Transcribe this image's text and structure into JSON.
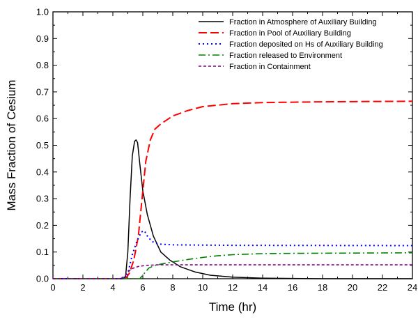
{
  "chart_data": {
    "type": "line",
    "title": "",
    "xlabel": "Time (hr)",
    "ylabel": "Mass Fraction of Cesium",
    "xlim": [
      0,
      24
    ],
    "ylim": [
      0,
      1.0
    ],
    "x_ticks": [
      "0",
      "2",
      "4",
      "6",
      "8",
      "10",
      "12",
      "14",
      "16",
      "18",
      "20",
      "22",
      "24"
    ],
    "y_ticks": [
      "0.0",
      "0.1",
      "0.2",
      "0.3",
      "0.4",
      "0.5",
      "0.6",
      "0.7",
      "0.8",
      "0.9",
      "1.0"
    ],
    "grid": false,
    "legend_position": "top-right",
    "series": [
      {
        "name": "Fraction in Atmosphere of Auxiliary Building",
        "color": "#000000",
        "dash": "solid",
        "points": [
          [
            0,
            0
          ],
          [
            4.7,
            0
          ],
          [
            4.85,
            0.01
          ],
          [
            5.0,
            0.1
          ],
          [
            5.15,
            0.3
          ],
          [
            5.3,
            0.46
          ],
          [
            5.45,
            0.515
          ],
          [
            5.55,
            0.52
          ],
          [
            5.65,
            0.51
          ],
          [
            5.8,
            0.43
          ],
          [
            6.0,
            0.33
          ],
          [
            6.3,
            0.24
          ],
          [
            6.7,
            0.16
          ],
          [
            7.2,
            0.1
          ],
          [
            7.8,
            0.07
          ],
          [
            8.5,
            0.045
          ],
          [
            9.5,
            0.025
          ],
          [
            10.5,
            0.013
          ],
          [
            12,
            0.006
          ],
          [
            14,
            0.002
          ],
          [
            16,
            0.001
          ],
          [
            18,
            0
          ],
          [
            24,
            0
          ]
        ]
      },
      {
        "name": "Fraction in Pool of Auxiliary Building",
        "color": "#ff0000",
        "dash": "dashed",
        "points": [
          [
            0,
            0
          ],
          [
            4.7,
            0
          ],
          [
            4.9,
            0.005
          ],
          [
            5.1,
            0.02
          ],
          [
            5.4,
            0.07
          ],
          [
            5.7,
            0.16
          ],
          [
            5.95,
            0.3
          ],
          [
            6.2,
            0.44
          ],
          [
            6.5,
            0.52
          ],
          [
            6.8,
            0.56
          ],
          [
            7.2,
            0.58
          ],
          [
            8,
            0.61
          ],
          [
            9,
            0.63
          ],
          [
            10,
            0.645
          ],
          [
            12,
            0.656
          ],
          [
            14,
            0.66
          ],
          [
            18,
            0.663
          ],
          [
            24,
            0.665
          ]
        ]
      },
      {
        "name": "Fraction deposited on Hs of Auxiliary Building",
        "color": "#0000ff",
        "dash": "dotted",
        "points": [
          [
            0,
            0
          ],
          [
            4.7,
            0
          ],
          [
            5.0,
            0.02
          ],
          [
            5.3,
            0.09
          ],
          [
            5.6,
            0.14
          ],
          [
            5.9,
            0.175
          ],
          [
            6.1,
            0.18
          ],
          [
            6.3,
            0.16
          ],
          [
            6.6,
            0.14
          ],
          [
            7.0,
            0.13
          ],
          [
            8,
            0.127
          ],
          [
            12,
            0.125
          ],
          [
            24,
            0.124
          ]
        ]
      },
      {
        "name": "Fraction released to Environment",
        "color": "#008000",
        "dash": "dashdot",
        "points": [
          [
            0,
            0
          ],
          [
            5.8,
            0
          ],
          [
            6.1,
            0.02
          ],
          [
            6.4,
            0.04
          ],
          [
            6.8,
            0.05
          ],
          [
            7.5,
            0.058
          ],
          [
            8,
            0.063
          ],
          [
            9,
            0.072
          ],
          [
            10,
            0.08
          ],
          [
            11,
            0.086
          ],
          [
            12,
            0.09
          ],
          [
            14,
            0.094
          ],
          [
            16,
            0.095
          ],
          [
            20,
            0.096
          ],
          [
            24,
            0.097
          ]
        ]
      },
      {
        "name": "Fraction in Containment",
        "color": "#800080",
        "dash": "shortdash",
        "points": [
          [
            0,
            0
          ],
          [
            4.5,
            0
          ],
          [
            4.8,
            0.01
          ],
          [
            5.0,
            0.025
          ],
          [
            5.3,
            0.038
          ],
          [
            5.7,
            0.046
          ],
          [
            6.2,
            0.05
          ],
          [
            7,
            0.052
          ],
          [
            9,
            0.052
          ],
          [
            24,
            0.052
          ]
        ]
      }
    ]
  }
}
